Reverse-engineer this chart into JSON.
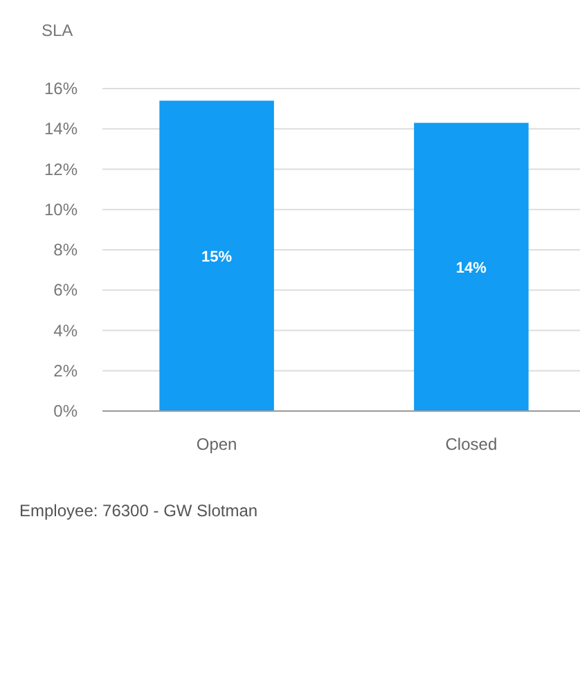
{
  "chart_data": {
    "type": "bar",
    "ylabel": "SLA",
    "categories": [
      "Open",
      "Closed"
    ],
    "values": [
      15.4,
      14.3
    ],
    "color": "#129cf3",
    "value_labels": [
      "15%",
      "14%"
    ],
    "ylim": [
      0,
      16
    ],
    "yticks": [
      {
        "value": 0,
        "label": "0%"
      },
      {
        "value": 2,
        "label": "2%"
      },
      {
        "value": 4,
        "label": "4%"
      },
      {
        "value": 6,
        "label": "6%"
      },
      {
        "value": 8,
        "label": "8%"
      },
      {
        "value": 10,
        "label": "10%"
      },
      {
        "value": 12,
        "label": "12%"
      },
      {
        "value": 14,
        "label": "14%"
      },
      {
        "value": 16,
        "label": "16%"
      }
    ],
    "grid": "y",
    "annotations": [
      "Employee: 76300 - GW Slotman"
    ]
  }
}
